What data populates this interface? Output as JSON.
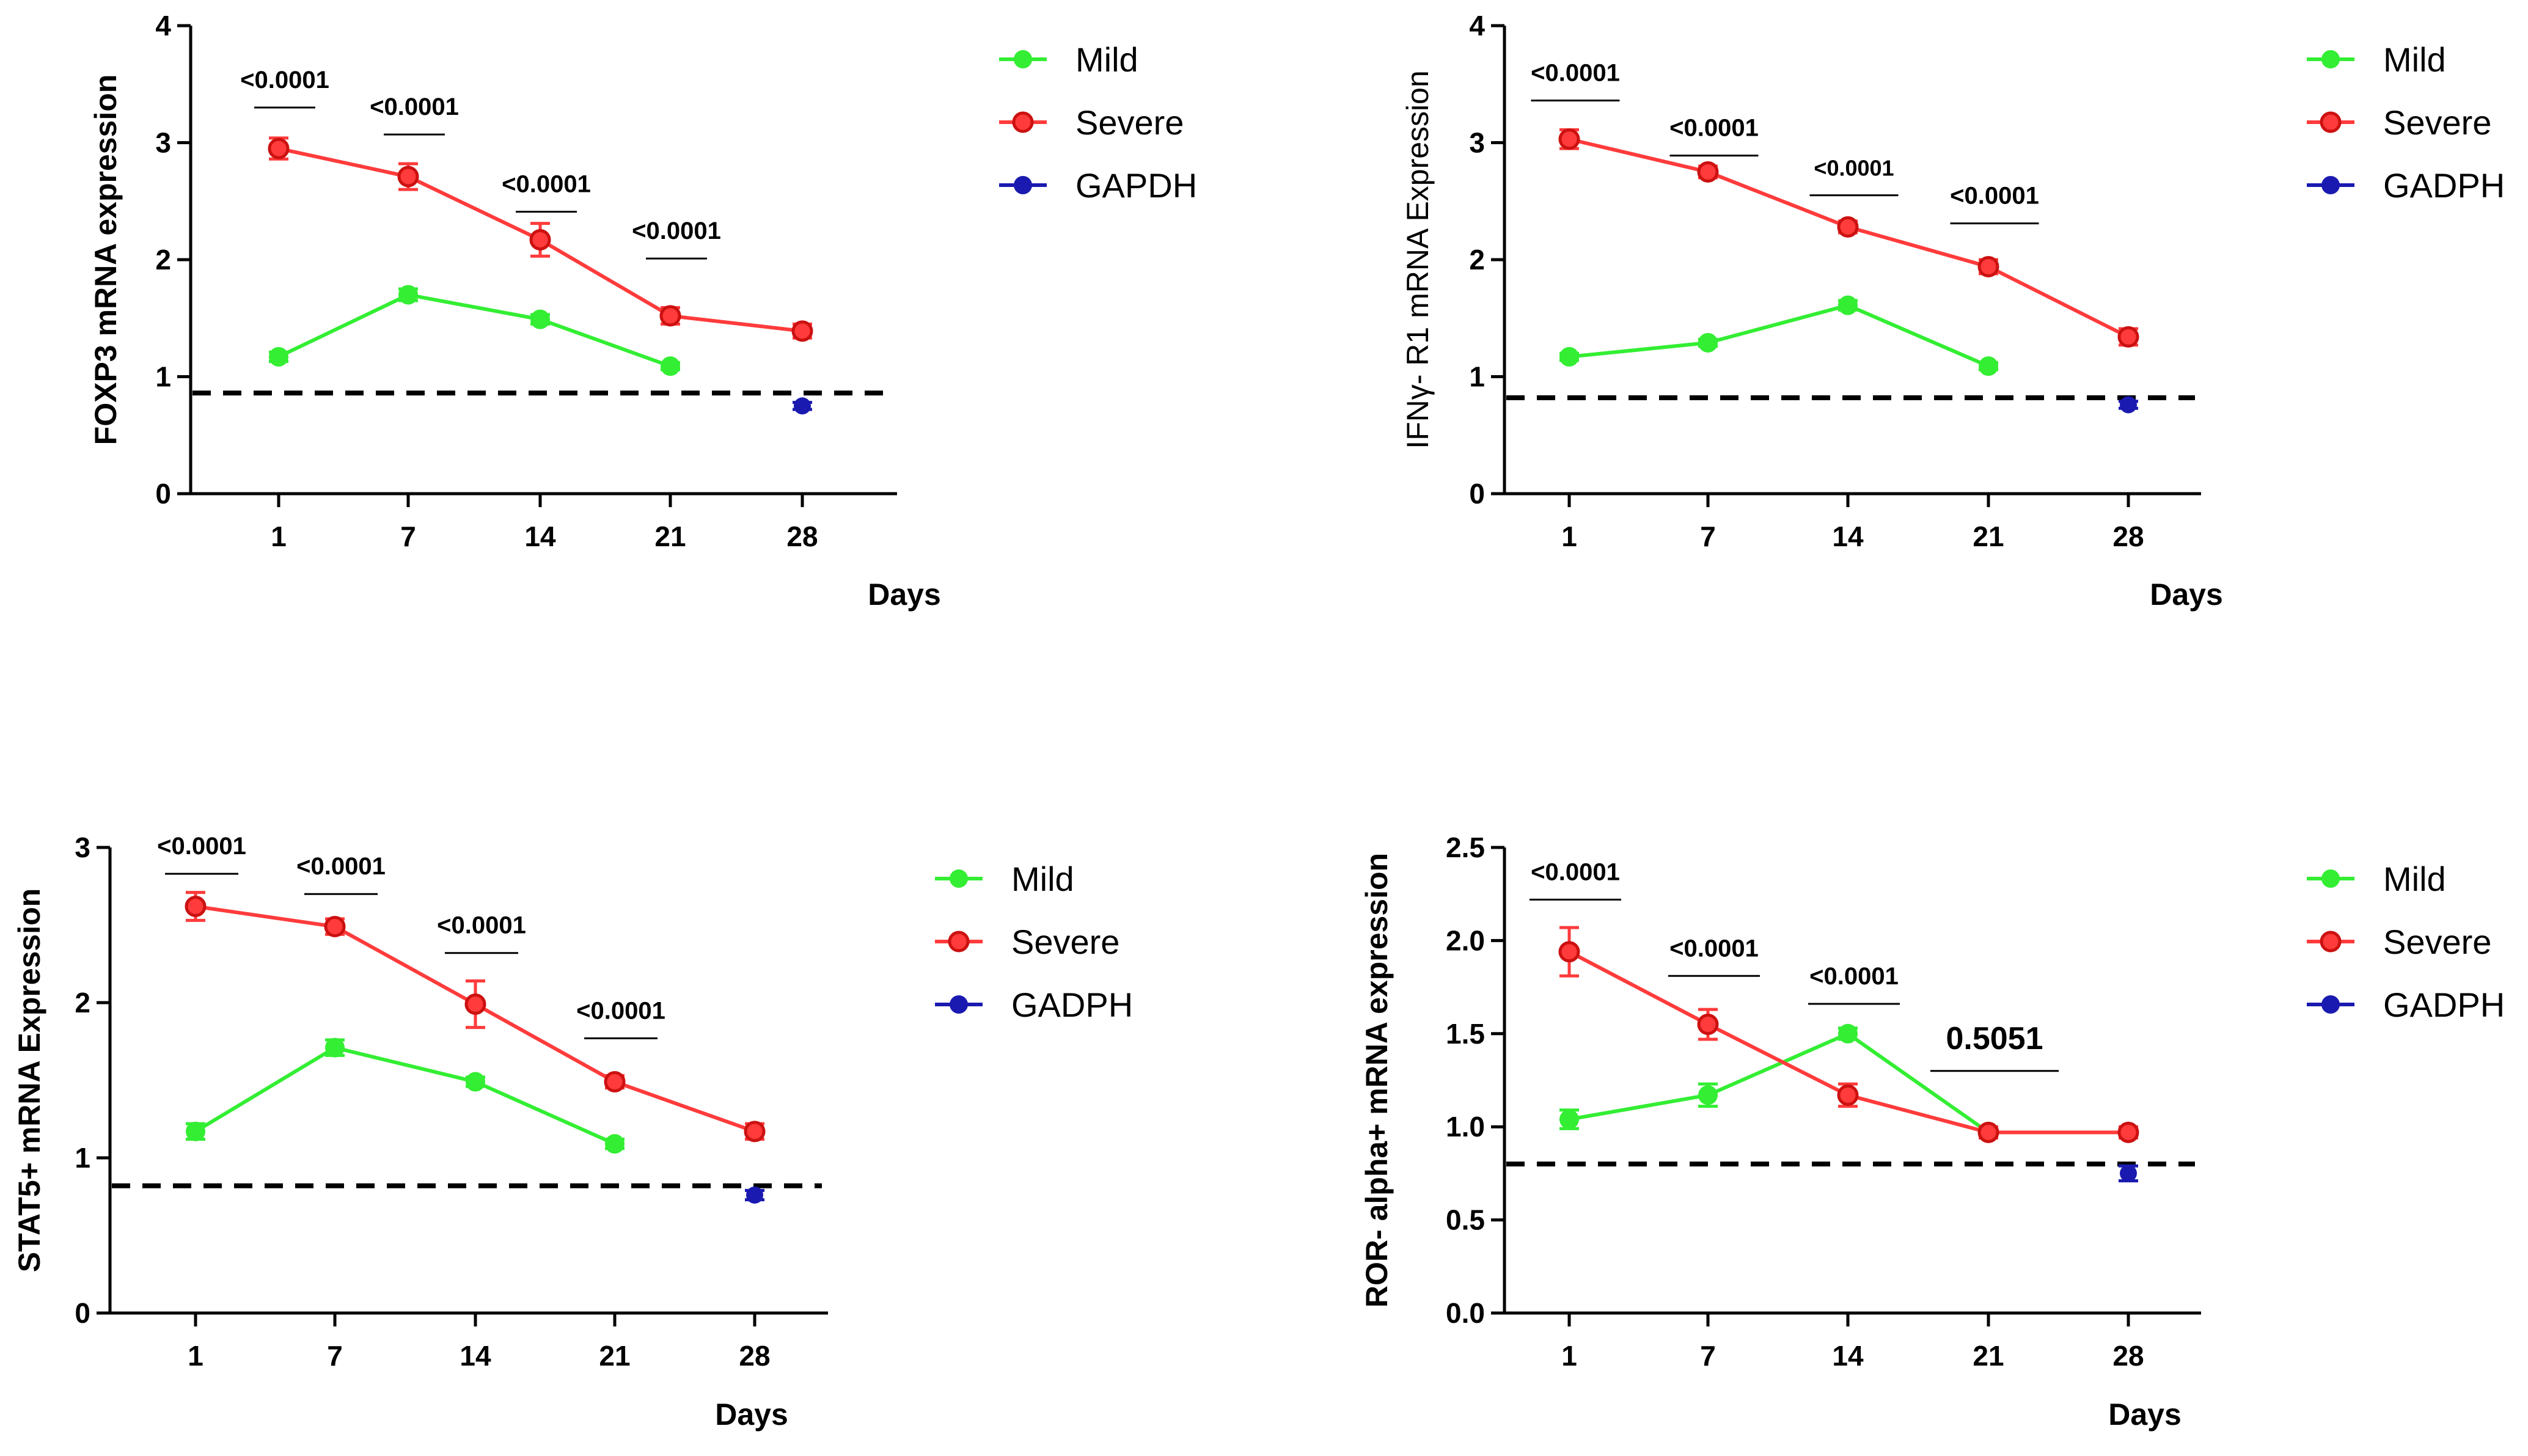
{
  "colors": {
    "mild": "#33ee33",
    "severe": "#ff3b3b",
    "gapdh": "#1a1ab0",
    "baseline": "#000000"
  },
  "chart_data": [
    {
      "type": "line",
      "id": "foxp3",
      "ylabel": "FOXP3 mRNA expression",
      "xlabel": "Days",
      "categories": [
        "1",
        "7",
        "14",
        "21",
        "28"
      ],
      "ylim": [
        0,
        4
      ],
      "yticks": [
        "0",
        "1",
        "2",
        "3",
        "4"
      ],
      "baseline": 0.86,
      "series": [
        {
          "name": "Mild",
          "color_key": "mild",
          "values": [
            1.17,
            1.7,
            1.49,
            1.09,
            null
          ],
          "errors": [
            0.04,
            0.05,
            0.04,
            0.03,
            null
          ]
        },
        {
          "name": "Severe",
          "color_key": "severe",
          "values": [
            2.95,
            2.71,
            2.17,
            1.52,
            1.39
          ],
          "errors": [
            0.09,
            0.11,
            0.14,
            0.07,
            0.06
          ]
        },
        {
          "name": "GAPDH",
          "color_key": "gapdh",
          "values": [
            null,
            null,
            null,
            null,
            0.75
          ],
          "errors": [
            null,
            null,
            null,
            null,
            0.03
          ]
        }
      ],
      "legend": [
        "Mild",
        "Severe",
        "GAPDH"
      ],
      "annotations": [
        {
          "text": "<0.0001",
          "cat": 0,
          "bar_y": 3.3,
          "style": "normal"
        },
        {
          "text": "<0.0001",
          "cat": 1,
          "bar_y": 3.07,
          "style": "normal"
        },
        {
          "text": "<0.0001",
          "cat": 2,
          "bar_y": 2.41,
          "style": "normal"
        },
        {
          "text": "<0.0001",
          "cat": 3,
          "bar_y": 2.01,
          "style": "normal"
        }
      ]
    },
    {
      "type": "line",
      "id": "ifngr1",
      "ylabel": "IFNγ- R1 mRNA Expression",
      "xlabel": "Days",
      "categories": [
        "1",
        "7",
        "14",
        "21",
        "28"
      ],
      "ylim": [
        0,
        4
      ],
      "yticks": [
        "0",
        "1",
        "2",
        "3",
        "4"
      ],
      "baseline": 0.82,
      "series": [
        {
          "name": "Mild",
          "color_key": "mild",
          "values": [
            1.17,
            1.29,
            1.61,
            1.09,
            null
          ],
          "errors": [
            0.03,
            0.03,
            0.04,
            0.03,
            null
          ]
        },
        {
          "name": "Severe",
          "color_key": "severe",
          "values": [
            3.03,
            2.75,
            2.28,
            1.94,
            1.34
          ],
          "errors": [
            0.08,
            0.05,
            0.05,
            0.06,
            0.07
          ]
        },
        {
          "name": "GADPH",
          "color_key": "gapdh",
          "values": [
            null,
            null,
            null,
            null,
            0.76
          ],
          "errors": [
            null,
            null,
            null,
            null,
            0.03
          ]
        }
      ],
      "legend": [
        "Mild",
        "Severe",
        "GADPH"
      ],
      "annotations": [
        {
          "text": "<0.0001",
          "cat": 0,
          "bar_y": 3.36,
          "style": "normal"
        },
        {
          "text": "<0.0001",
          "cat": 1,
          "bar_y": 2.89,
          "style": "normal"
        },
        {
          "text": "<0.0001",
          "cat": 2,
          "bar_y": 2.55,
          "style": "small"
        },
        {
          "text": "<0.0001",
          "cat": 3,
          "bar_y": 2.31,
          "style": "normal"
        }
      ]
    },
    {
      "type": "line",
      "id": "stat5",
      "ylabel": "STAT5+ mRNA Expression",
      "xlabel": "Days",
      "categories": [
        "1",
        "7",
        "14",
        "21",
        "28"
      ],
      "ylim": [
        0,
        3
      ],
      "yticks": [
        "0",
        "1",
        "2",
        "3"
      ],
      "baseline": 0.82,
      "series": [
        {
          "name": "Mild",
          "color_key": "mild",
          "values": [
            1.17,
            1.71,
            1.49,
            1.09,
            null
          ],
          "errors": [
            0.05,
            0.05,
            0.03,
            0.03,
            null
          ]
        },
        {
          "name": "Severe",
          "color_key": "severe",
          "values": [
            2.62,
            2.49,
            1.99,
            1.49,
            1.17
          ],
          "errors": [
            0.09,
            0.05,
            0.15,
            0.04,
            0.05
          ]
        },
        {
          "name": "GADPH",
          "color_key": "gapdh",
          "values": [
            null,
            null,
            null,
            null,
            0.76
          ],
          "errors": [
            null,
            null,
            null,
            null,
            0.03
          ]
        }
      ],
      "legend": [
        "Mild",
        "Severe",
        "GADPH"
      ],
      "annotations": [
        {
          "text": "<0.0001",
          "cat": 0,
          "bar_y": 2.83,
          "style": "normal"
        },
        {
          "text": "<0.0001",
          "cat": 1,
          "bar_y": 2.7,
          "style": "normal"
        },
        {
          "text": "<0.0001",
          "cat": 2,
          "bar_y": 2.32,
          "style": "normal"
        },
        {
          "text": "<0.0001",
          "cat": 3,
          "bar_y": 1.77,
          "style": "normal"
        }
      ]
    },
    {
      "type": "line",
      "id": "roralpha",
      "ylabel": "ROR- alpha+ mRNA expression",
      "xlabel": "Days",
      "categories": [
        "1",
        "7",
        "14",
        "21",
        "28"
      ],
      "ylim": [
        0,
        2.5
      ],
      "yticks": [
        "0.0",
        "0.5",
        "1.0",
        "1.5",
        "2.0",
        "2.5"
      ],
      "baseline": 0.8,
      "series": [
        {
          "name": "Mild",
          "color_key": "mild",
          "values": [
            1.04,
            1.17,
            1.5,
            0.97,
            null
          ],
          "errors": [
            0.05,
            0.06,
            0.03,
            0.03,
            null
          ]
        },
        {
          "name": "Severe",
          "color_key": "severe",
          "values": [
            1.94,
            1.55,
            1.17,
            0.97,
            0.97
          ],
          "errors": [
            0.13,
            0.08,
            0.06,
            0.03,
            0.03
          ]
        },
        {
          "name": "GADPH",
          "color_key": "gapdh",
          "values": [
            null,
            null,
            null,
            null,
            0.75
          ],
          "errors": [
            null,
            null,
            null,
            null,
            0.04
          ]
        }
      ],
      "legend": [
        "Mild",
        "Severe",
        "GADPH"
      ],
      "annotations": [
        {
          "text": "<0.0001",
          "cat": 0,
          "bar_y": 2.22,
          "style": "normal"
        },
        {
          "text": "<0.0001",
          "cat": 1,
          "bar_y": 1.81,
          "style": "normal"
        },
        {
          "text": "<0.0001",
          "cat": 2,
          "bar_y": 1.66,
          "style": "normal"
        },
        {
          "text": "0.5051",
          "cat": 3,
          "bar_y": 1.3,
          "style": "big"
        }
      ]
    }
  ]
}
